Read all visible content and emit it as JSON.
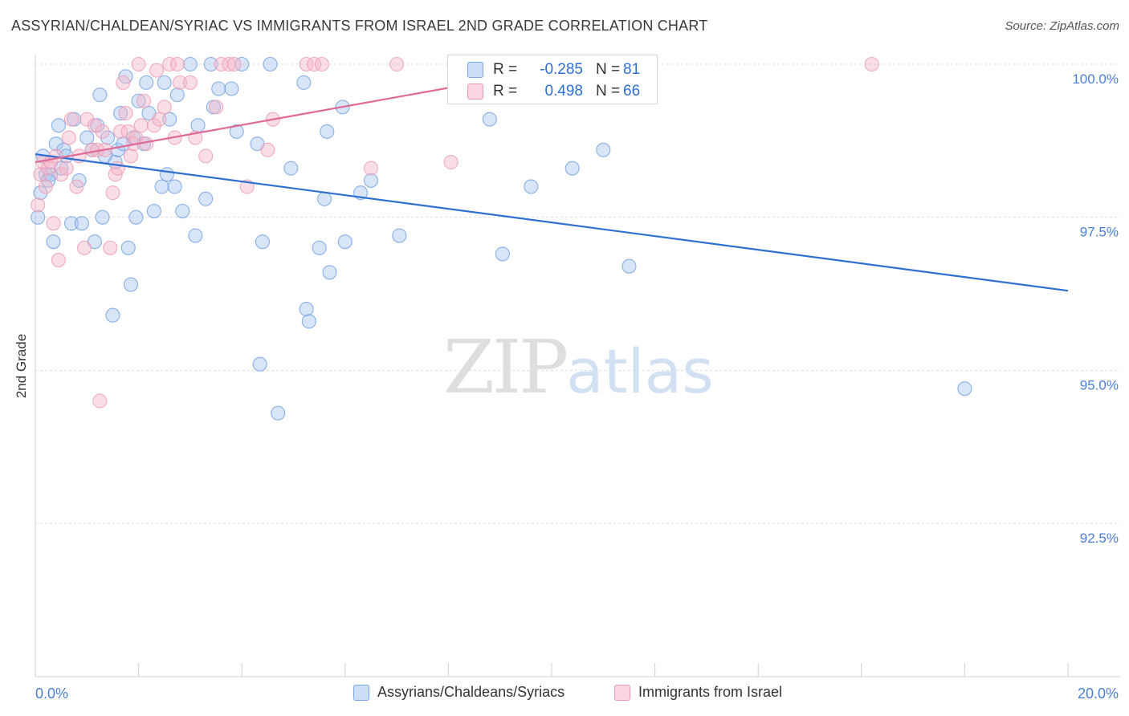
{
  "header": {
    "title": "ASSYRIAN/CHALDEAN/SYRIAC VS IMMIGRANTS FROM ISRAEL 2ND GRADE CORRELATION CHART",
    "source": "Source: ZipAtlas.com"
  },
  "watermark": {
    "zip": "ZIP",
    "atlas": "atlas"
  },
  "stats": {
    "rows": [
      {
        "r_label": "R =",
        "r_value": "-0.285",
        "n_label": "N =",
        "n_value": "81",
        "color": "#a9c6ef"
      },
      {
        "r_label": "R =",
        "r_value": "0.498",
        "n_label": "N =",
        "n_value": "66",
        "color": "#f4b6c8"
      }
    ]
  },
  "legend": {
    "items": [
      {
        "label": "Assyrians/Chaldeans/Syriacs",
        "color": "#a9c6ef"
      },
      {
        "label": "Immigrants from Israel",
        "color": "#f4b6c8"
      }
    ]
  },
  "chart_data": {
    "type": "scatter",
    "title": "ASSYRIAN/CHALDEAN/SYRIAC VS IMMIGRANTS FROM ISRAEL 2ND GRADE CORRELATION CHART",
    "xlabel": "",
    "ylabel": "2nd Grade",
    "xlim": [
      0,
      20
    ],
    "ylim": [
      90.5,
      100.3
    ],
    "x_tick_labels": [
      "0.0%",
      "20.0%"
    ],
    "y_ticks": [
      100.0,
      97.5,
      95.0,
      92.5
    ],
    "y_tick_labels": [
      "100.0%",
      "97.5%",
      "95.0%",
      "92.5%"
    ],
    "grid": true,
    "legend_position": "bottom",
    "series": [
      {
        "name": "Assyrians/Chaldeans/Syriacs",
        "color": "#6f9fe0",
        "fill": "#a9c6ef",
        "trend": {
          "x": [
            0.0,
            20.0
          ],
          "y": [
            98.53,
            96.3
          ],
          "color": "#2e6fd0"
        },
        "points": [
          [
            0.05,
            97.5
          ],
          [
            0.1,
            97.9
          ],
          [
            0.15,
            98.5
          ],
          [
            0.2,
            98.2
          ],
          [
            0.3,
            98.2
          ],
          [
            0.35,
            97.1
          ],
          [
            0.4,
            98.7
          ],
          [
            0.45,
            99.0
          ],
          [
            0.5,
            98.3
          ],
          [
            0.55,
            98.6
          ],
          [
            0.6,
            98.5
          ],
          [
            0.7,
            97.4
          ],
          [
            0.75,
            99.1
          ],
          [
            0.85,
            98.1
          ],
          [
            0.9,
            97.4
          ],
          [
            1.0,
            98.8
          ],
          [
            1.1,
            98.6
          ],
          [
            1.15,
            97.1
          ],
          [
            1.2,
            99.0
          ],
          [
            1.25,
            99.5
          ],
          [
            1.3,
            97.5
          ],
          [
            1.35,
            98.5
          ],
          [
            1.4,
            98.8
          ],
          [
            1.5,
            95.9
          ],
          [
            1.55,
            98.4
          ],
          [
            1.6,
            98.6
          ],
          [
            1.65,
            99.2
          ],
          [
            1.7,
            98.7
          ],
          [
            1.75,
            99.8
          ],
          [
            1.8,
            97.0
          ],
          [
            1.85,
            96.4
          ],
          [
            1.9,
            98.8
          ],
          [
            1.95,
            97.5
          ],
          [
            2.0,
            99.4
          ],
          [
            2.1,
            98.7
          ],
          [
            2.15,
            99.7
          ],
          [
            2.2,
            99.2
          ],
          [
            2.3,
            97.6
          ],
          [
            2.45,
            98.0
          ],
          [
            2.5,
            99.7
          ],
          [
            2.55,
            98.2
          ],
          [
            2.6,
            99.1
          ],
          [
            2.7,
            98.0
          ],
          [
            2.75,
            99.5
          ],
          [
            2.85,
            97.6
          ],
          [
            3.0,
            100.0
          ],
          [
            3.1,
            97.2
          ],
          [
            3.15,
            99.0
          ],
          [
            3.3,
            97.8
          ],
          [
            3.4,
            100.0
          ],
          [
            3.45,
            99.3
          ],
          [
            3.55,
            99.6
          ],
          [
            3.8,
            99.6
          ],
          [
            3.9,
            98.9
          ],
          [
            4.0,
            100.0
          ],
          [
            4.3,
            98.7
          ],
          [
            4.35,
            95.1
          ],
          [
            4.4,
            97.1
          ],
          [
            4.55,
            100.0
          ],
          [
            4.7,
            94.3
          ],
          [
            4.95,
            98.3
          ],
          [
            5.2,
            99.7
          ],
          [
            5.25,
            96.0
          ],
          [
            5.3,
            95.8
          ],
          [
            5.5,
            97.0
          ],
          [
            5.6,
            97.8
          ],
          [
            5.65,
            98.9
          ],
          [
            5.7,
            96.6
          ],
          [
            5.95,
            99.3
          ],
          [
            6.0,
            97.1
          ],
          [
            6.3,
            97.9
          ],
          [
            6.5,
            98.1
          ],
          [
            7.05,
            97.2
          ],
          [
            8.8,
            99.1
          ],
          [
            9.05,
            96.9
          ],
          [
            9.6,
            98.0
          ],
          [
            10.4,
            98.3
          ],
          [
            11.0,
            98.6
          ],
          [
            11.5,
            96.7
          ],
          [
            18.0,
            94.7
          ],
          [
            0.25,
            98.1
          ]
        ]
      },
      {
        "name": "Immigrants from Israel",
        "color": "#ee9ab4",
        "fill": "#f4b6c8",
        "trend": {
          "x": [
            0.0,
            11.2
          ],
          "y": [
            98.4,
            100.1
          ],
          "color": "#e06a94"
        },
        "points": [
          [
            0.05,
            97.7
          ],
          [
            0.1,
            98.2
          ],
          [
            0.15,
            98.4
          ],
          [
            0.2,
            98.0
          ],
          [
            0.25,
            98.3
          ],
          [
            0.3,
            98.4
          ],
          [
            0.35,
            97.4
          ],
          [
            0.4,
            98.5
          ],
          [
            0.45,
            96.8
          ],
          [
            0.5,
            98.2
          ],
          [
            0.6,
            98.3
          ],
          [
            0.65,
            98.8
          ],
          [
            0.7,
            99.1
          ],
          [
            0.8,
            98.0
          ],
          [
            0.85,
            98.5
          ],
          [
            0.95,
            97.0
          ],
          [
            1.0,
            99.1
          ],
          [
            1.1,
            98.6
          ],
          [
            1.15,
            99.0
          ],
          [
            1.2,
            98.6
          ],
          [
            1.3,
            98.9
          ],
          [
            1.45,
            97.0
          ],
          [
            1.5,
            97.9
          ],
          [
            1.55,
            98.2
          ],
          [
            1.6,
            98.3
          ],
          [
            1.65,
            98.9
          ],
          [
            1.7,
            99.7
          ],
          [
            1.75,
            99.2
          ],
          [
            1.8,
            98.9
          ],
          [
            1.85,
            98.5
          ],
          [
            1.9,
            98.7
          ],
          [
            1.95,
            98.8
          ],
          [
            2.0,
            100.0
          ],
          [
            2.05,
            99.0
          ],
          [
            2.1,
            99.4
          ],
          [
            2.15,
            98.7
          ],
          [
            2.3,
            99.0
          ],
          [
            2.35,
            99.9
          ],
          [
            2.4,
            99.1
          ],
          [
            2.5,
            99.3
          ],
          [
            2.6,
            100.0
          ],
          [
            2.7,
            98.8
          ],
          [
            2.75,
            100.0
          ],
          [
            2.8,
            99.7
          ],
          [
            3.0,
            99.7
          ],
          [
            3.1,
            98.8
          ],
          [
            3.3,
            98.5
          ],
          [
            3.5,
            99.3
          ],
          [
            3.6,
            100.0
          ],
          [
            3.75,
            100.0
          ],
          [
            3.85,
            100.0
          ],
          [
            4.1,
            98.0
          ],
          [
            4.5,
            98.6
          ],
          [
            4.6,
            99.1
          ],
          [
            5.25,
            100.0
          ],
          [
            5.4,
            100.0
          ],
          [
            5.55,
            100.0
          ],
          [
            6.5,
            98.3
          ],
          [
            7.0,
            100.0
          ],
          [
            8.05,
            98.4
          ],
          [
            10.0,
            100.0
          ],
          [
            11.2,
            100.0
          ],
          [
            11.45,
            100.0
          ],
          [
            16.2,
            100.0
          ],
          [
            1.25,
            94.5
          ],
          [
            1.35,
            98.6
          ]
        ]
      }
    ]
  }
}
